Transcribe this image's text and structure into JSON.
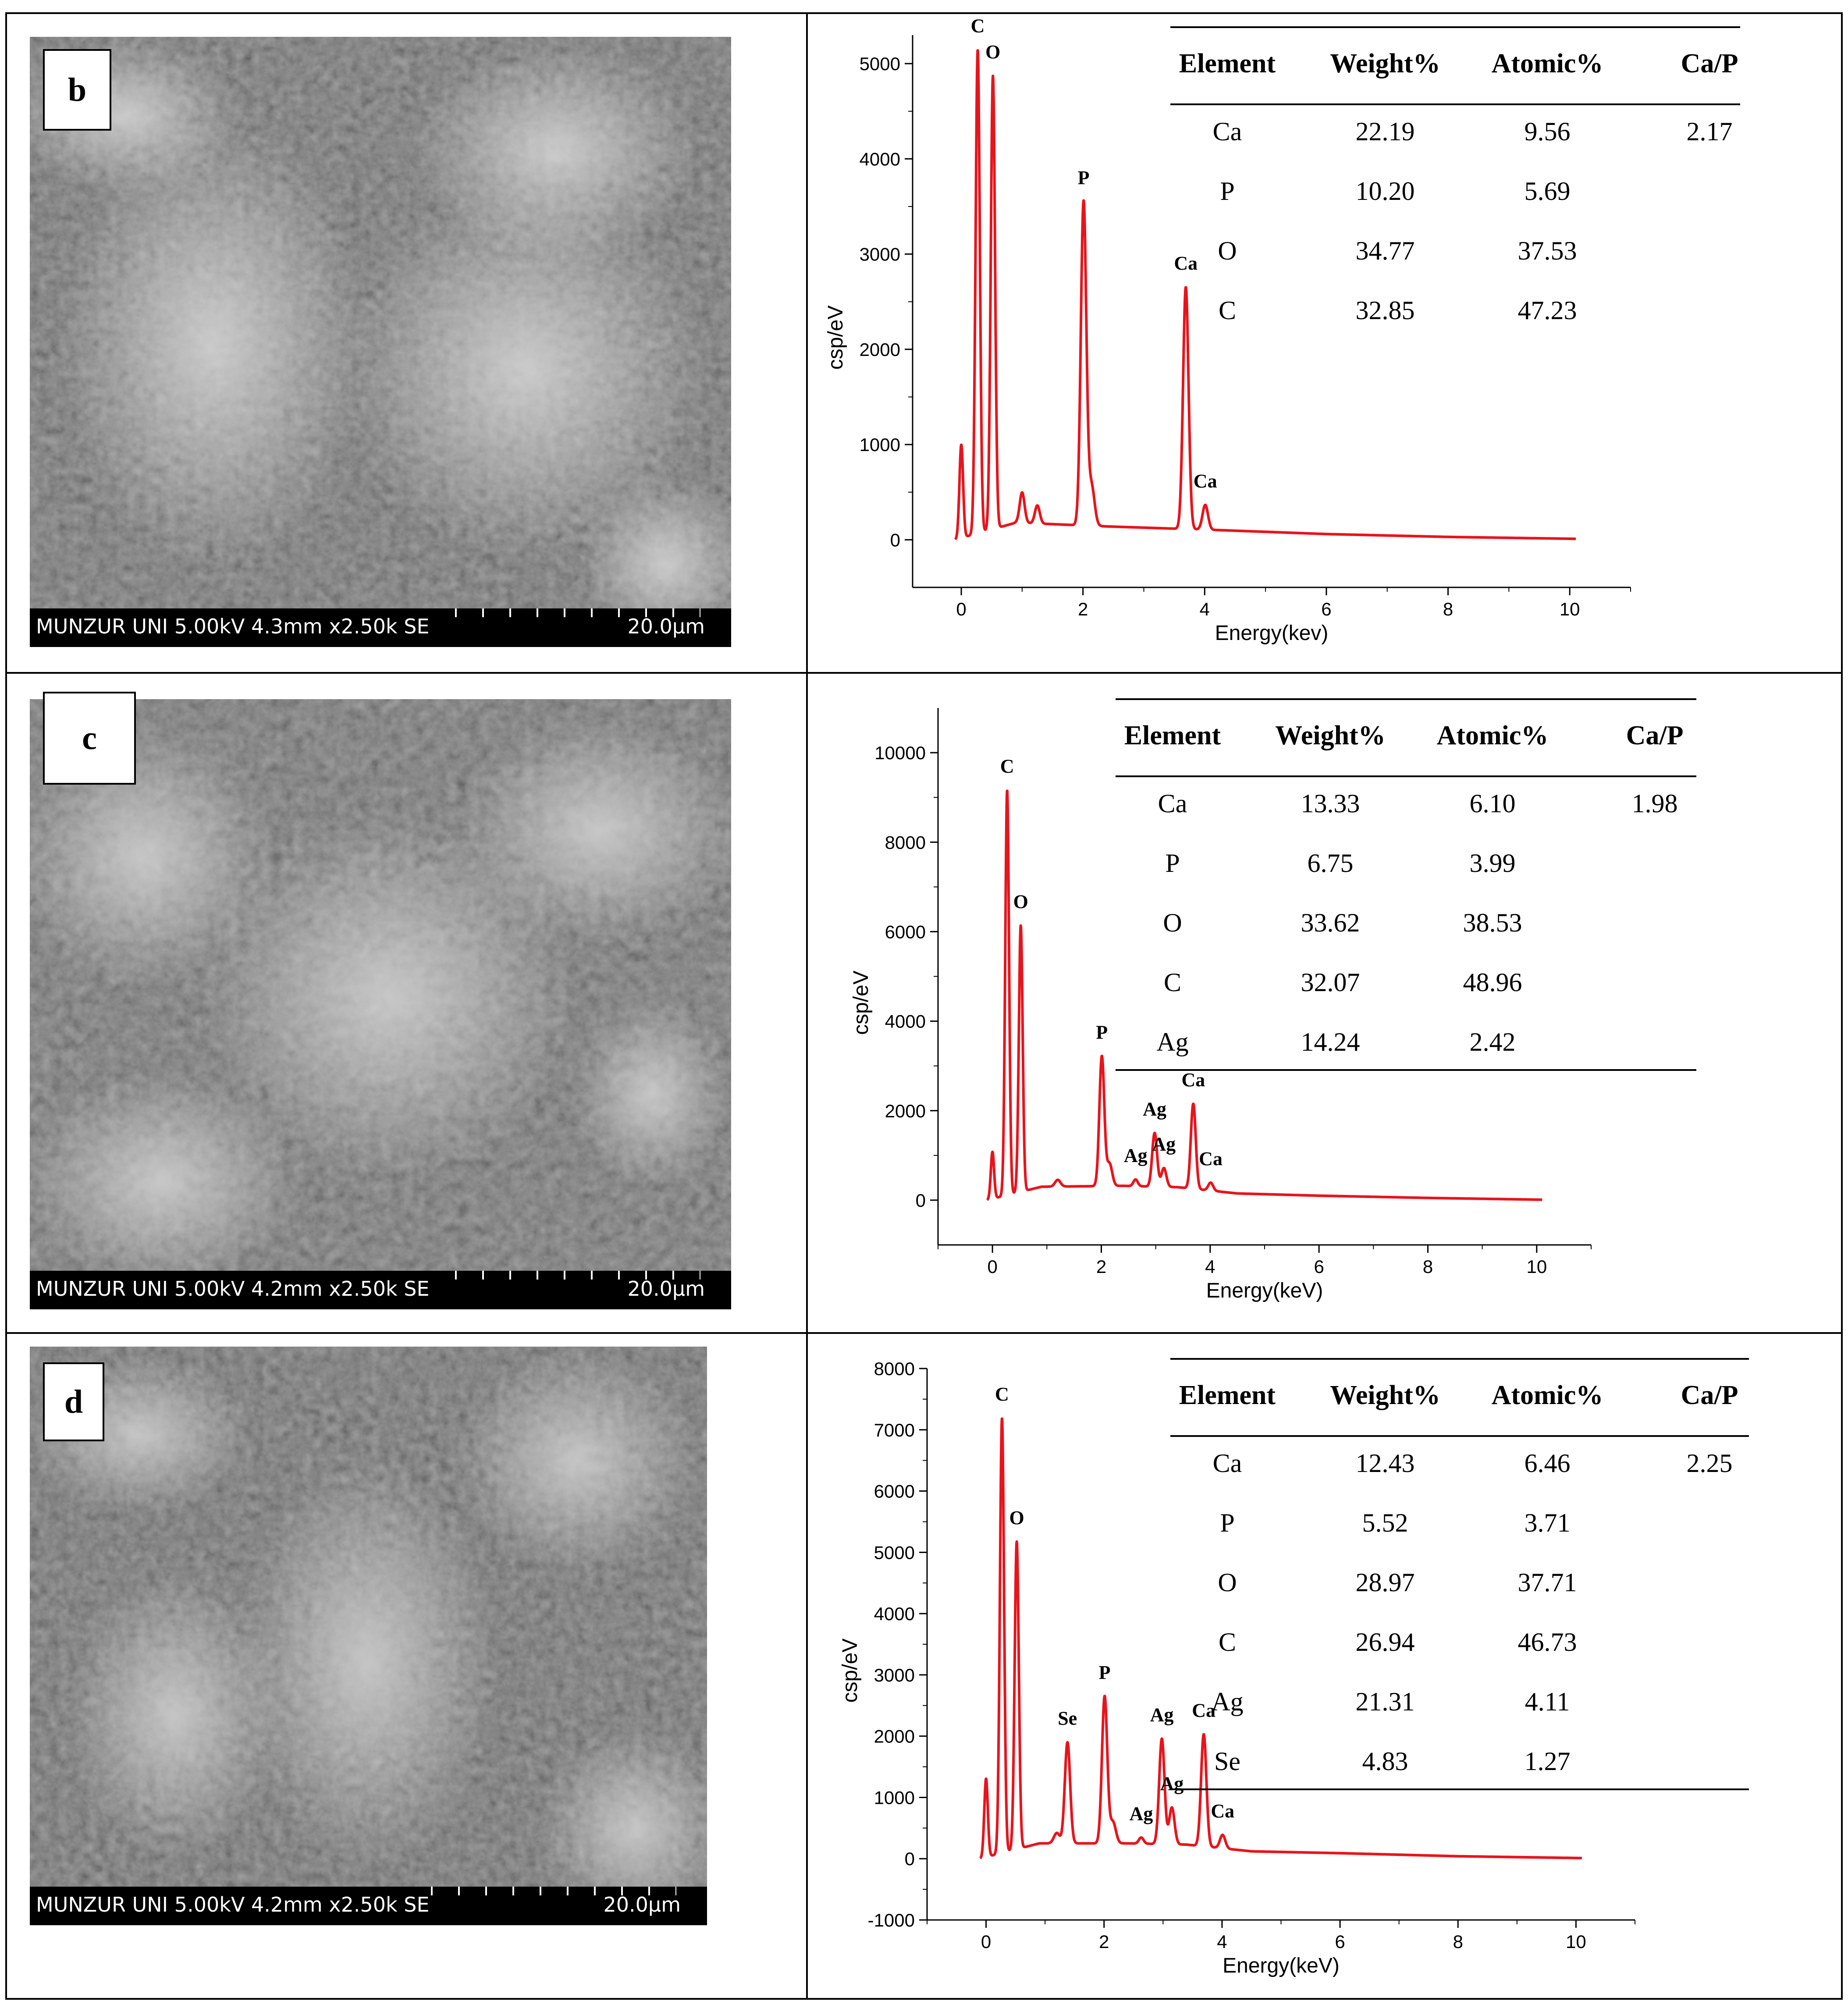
{
  "panels": [
    {
      "label": "b",
      "sem_info": "MUNZUR UNI 5.00kV 4.3mm x2.50k SE",
      "sem_scale": "20.0µm",
      "table": {
        "headers": [
          "Element",
          "Weight%",
          "Atomic%",
          "Ca/P"
        ],
        "rows": [
          [
            "Ca",
            "22.19",
            "9.56",
            "2.17"
          ],
          [
            "P",
            "10.20",
            "5.69",
            ""
          ],
          [
            "O",
            "34.77",
            "37.53",
            ""
          ],
          [
            "C",
            "32.85",
            "47.23",
            ""
          ]
        ]
      }
    },
    {
      "label": "c",
      "sem_info": "MUNZUR UNI 5.00kV 4.2mm x2.50k SE",
      "sem_scale": "20.0µm",
      "table": {
        "headers": [
          "Element",
          "Weight%",
          "Atomic%",
          "Ca/P"
        ],
        "rows": [
          [
            "Ca",
            "13.33",
            "6.10",
            "1.98"
          ],
          [
            "P",
            "6.75",
            "3.99",
            ""
          ],
          [
            "O",
            "33.62",
            "38.53",
            ""
          ],
          [
            "C",
            "32.07",
            "48.96",
            ""
          ],
          [
            "Ag",
            "14.24",
            "2.42",
            ""
          ]
        ]
      }
    },
    {
      "label": "d",
      "sem_info": "MUNZUR UNI 5.00kV 4.2mm x2.50k SE",
      "sem_scale": "20.0µm",
      "table": {
        "headers": [
          "Element",
          "Weight%",
          "Atomic%",
          "Ca/P"
        ],
        "rows": [
          [
            "Ca",
            "12.43",
            "6.46",
            "2.25"
          ],
          [
            "P",
            "5.52",
            "3.71",
            ""
          ],
          [
            "O",
            "28.97",
            "37.71",
            ""
          ],
          [
            "C",
            "26.94",
            "46.73",
            ""
          ],
          [
            "Ag",
            "21.31",
            "4.11",
            ""
          ],
          [
            "Se",
            "4.83",
            "1.27",
            ""
          ]
        ]
      }
    }
  ],
  "chart_data": [
    {
      "type": "line",
      "panel": "b",
      "xlabel": "Energy(kev)",
      "ylabel": "csp/eV",
      "xlim": [
        -0.8,
        11
      ],
      "ylim": [
        -500,
        5300
      ],
      "xticks": [
        0,
        2,
        4,
        6,
        8,
        10
      ],
      "yticks": [
        0,
        1000,
        2000,
        3000,
        4000,
        5000
      ],
      "color": "#e8141c",
      "peaks": [
        {
          "x": 0.0,
          "y": 980,
          "w": 0.03,
          "label": ""
        },
        {
          "x": 0.27,
          "y": 5080,
          "w": 0.035,
          "label": "C"
        },
        {
          "x": 0.52,
          "y": 4760,
          "w": 0.035,
          "label": "O"
        },
        {
          "x": 1.0,
          "y": 320,
          "w": 0.04,
          "label": ""
        },
        {
          "x": 1.25,
          "y": 190,
          "w": 0.04,
          "label": ""
        },
        {
          "x": 2.01,
          "y": 3400,
          "w": 0.045,
          "label": "P"
        },
        {
          "x": 2.14,
          "y": 420,
          "w": 0.05,
          "label": ""
        },
        {
          "x": 3.69,
          "y": 2540,
          "w": 0.045,
          "label": "Ca"
        },
        {
          "x": 4.01,
          "y": 260,
          "w": 0.045,
          "label": "Ca"
        }
      ],
      "baseline": [
        [
          -0.1,
          0
        ],
        [
          0.9,
          180
        ],
        [
          2.4,
          140
        ],
        [
          4.3,
          100
        ],
        [
          6,
          60
        ],
        [
          8,
          30
        ],
        [
          10.1,
          10
        ]
      ]
    },
    {
      "type": "line",
      "panel": "c",
      "xlabel": "Energy(keV)",
      "ylabel": "csp/eV",
      "xlim": [
        -1,
        11
      ],
      "ylim": [
        -1000,
        11000
      ],
      "xticks": [
        0,
        2,
        4,
        6,
        8,
        10
      ],
      "yticks": [
        0,
        2000,
        4000,
        6000,
        8000,
        10000
      ],
      "color": "#e8141c",
      "peaks": [
        {
          "x": 0.0,
          "y": 1050,
          "w": 0.03,
          "label": ""
        },
        {
          "x": 0.27,
          "y": 9050,
          "w": 0.035,
          "label": "C"
        },
        {
          "x": 0.52,
          "y": 5950,
          "w": 0.035,
          "label": "O"
        },
        {
          "x": 1.2,
          "y": 150,
          "w": 0.05,
          "label": ""
        },
        {
          "x": 2.01,
          "y": 2900,
          "w": 0.045,
          "label": "P"
        },
        {
          "x": 2.15,
          "y": 500,
          "w": 0.05,
          "label": ""
        },
        {
          "x": 2.63,
          "y": 150,
          "w": 0.04,
          "label": "Ag"
        },
        {
          "x": 2.98,
          "y": 1200,
          "w": 0.045,
          "label": "Ag"
        },
        {
          "x": 3.15,
          "y": 420,
          "w": 0.045,
          "label": "Ag"
        },
        {
          "x": 3.69,
          "y": 1900,
          "w": 0.045,
          "label": "Ca"
        },
        {
          "x": 4.01,
          "y": 180,
          "w": 0.045,
          "label": "Ca"
        }
      ],
      "baseline": [
        [
          -0.1,
          0
        ],
        [
          0.9,
          300
        ],
        [
          2.4,
          320
        ],
        [
          3.4,
          290
        ],
        [
          4.5,
          150
        ],
        [
          6,
          100
        ],
        [
          8,
          50
        ],
        [
          10.1,
          10
        ]
      ]
    },
    {
      "type": "line",
      "panel": "d",
      "xlabel": "Energy(keV)",
      "ylabel": "csp/eV",
      "xlim": [
        -1,
        11
      ],
      "ylim": [
        -1000,
        8000
      ],
      "xticks": [
        0,
        2,
        4,
        6,
        8,
        10
      ],
      "yticks": [
        -1000,
        0,
        1000,
        2000,
        3000,
        4000,
        5000,
        6000,
        7000,
        8000
      ],
      "color": "#e8141c",
      "peaks": [
        {
          "x": 0.0,
          "y": 1280,
          "w": 0.03,
          "label": ""
        },
        {
          "x": 0.27,
          "y": 7100,
          "w": 0.035,
          "label": "C"
        },
        {
          "x": 0.52,
          "y": 5020,
          "w": 0.035,
          "label": "O"
        },
        {
          "x": 1.2,
          "y": 170,
          "w": 0.05,
          "label": ""
        },
        {
          "x": 1.38,
          "y": 1650,
          "w": 0.045,
          "label": "Se"
        },
        {
          "x": 2.01,
          "y": 2400,
          "w": 0.045,
          "label": "P"
        },
        {
          "x": 2.15,
          "y": 350,
          "w": 0.05,
          "label": ""
        },
        {
          "x": 2.63,
          "y": 100,
          "w": 0.04,
          "label": "Ag"
        },
        {
          "x": 2.98,
          "y": 1720,
          "w": 0.045,
          "label": "Ag"
        },
        {
          "x": 3.15,
          "y": 600,
          "w": 0.045,
          "label": "Ag"
        },
        {
          "x": 3.69,
          "y": 1830,
          "w": 0.045,
          "label": "Ca"
        },
        {
          "x": 4.01,
          "y": 220,
          "w": 0.045,
          "label": "Ca"
        }
      ],
      "baseline": [
        [
          -0.1,
          0
        ],
        [
          0.9,
          250
        ],
        [
          2.4,
          250
        ],
        [
          3.4,
          230
        ],
        [
          4.5,
          120
        ],
        [
          6,
          90
        ],
        [
          8,
          40
        ],
        [
          10.1,
          10
        ]
      ]
    }
  ]
}
